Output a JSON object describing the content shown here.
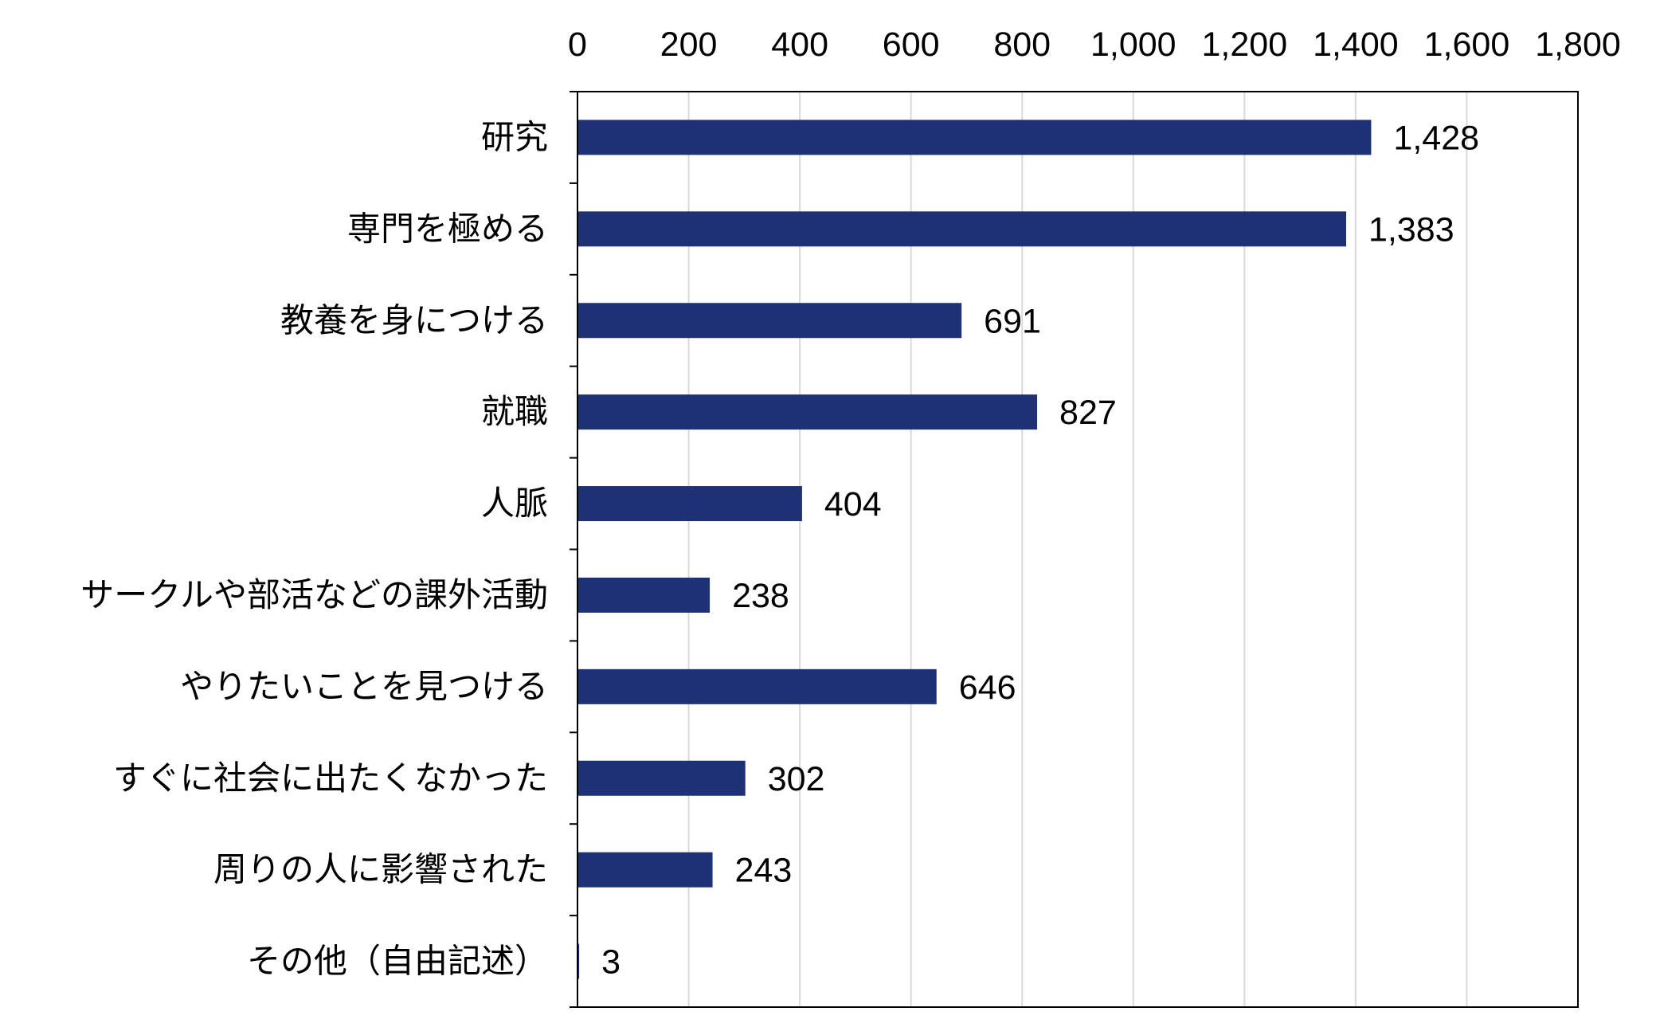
{
  "chart_data": {
    "type": "bar",
    "orientation": "horizontal",
    "x_axis_position": "top",
    "categories": [
      "研究",
      "専門を極める",
      "教養を身につける",
      "就職",
      "人脈",
      "サークルや部活などの課外活動",
      "やりたいことを見つける",
      "すぐに社会に出たくなかった",
      "周りの人に影響された",
      "その他（自由記述）"
    ],
    "values": [
      1428,
      1383,
      691,
      827,
      404,
      238,
      646,
      302,
      243,
      3
    ],
    "value_labels": [
      "1,428",
      "1,383",
      "691",
      "827",
      "404",
      "238",
      "646",
      "302",
      "243",
      "3"
    ],
    "xlim": [
      0,
      1800
    ],
    "tick_values": [
      0,
      200,
      400,
      600,
      800,
      1000,
      1200,
      1400,
      1600,
      1800
    ],
    "tick_labels": [
      "0",
      "200",
      "400",
      "600",
      "800",
      "1,000",
      "1,200",
      "1,400",
      "1,600",
      "1,800"
    ],
    "bar_color": "#1f3175",
    "grid": "vertical",
    "grid_color": "#d9d9d9",
    "title": "",
    "xlabel": "",
    "ylabel": ""
  }
}
